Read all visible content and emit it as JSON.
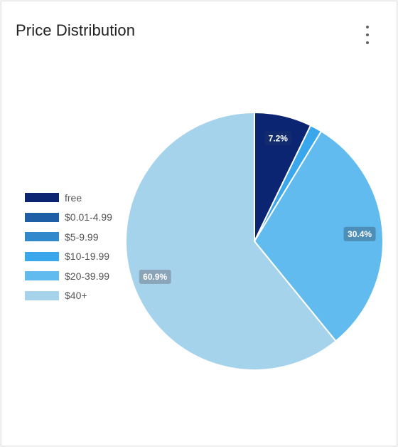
{
  "card": {
    "title": "Price Distribution",
    "menu_icon": "more-vert-icon"
  },
  "chart_data": {
    "type": "pie",
    "title": "Price Distribution",
    "legend_position": "left",
    "categories": [
      "free",
      "$0.01-4.99",
      "$5-9.99",
      "$10-19.99",
      "$20-39.99",
      "$40+"
    ],
    "values": [
      7.2,
      0.0,
      0.0,
      1.5,
      30.4,
      60.9
    ],
    "colors": [
      "#0b2572",
      "#1f5fa5",
      "#3189cc",
      "#3aa6eb",
      "#61bbee",
      "#a6d3ec"
    ],
    "data_labels": [
      "7.2%",
      "",
      "",
      "",
      "30.4%",
      "60.9%"
    ],
    "label_bg_colors": [
      "#122a6e",
      "",
      "",
      "",
      "#4d8eb8",
      "#8aa5b8"
    ]
  }
}
